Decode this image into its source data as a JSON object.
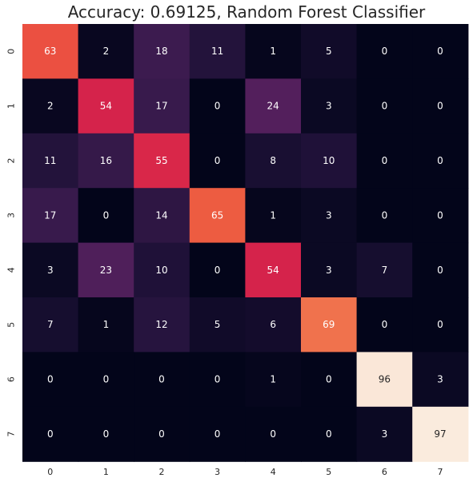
{
  "chart_data": {
    "type": "heatmap",
    "title": "Accuracy: 0.69125, Random Forest Classifier",
    "x_ticks": [
      "0",
      "1",
      "2",
      "3",
      "4",
      "5",
      "6",
      "7"
    ],
    "y_ticks": [
      "0",
      "1",
      "2",
      "3",
      "4",
      "5",
      "6",
      "7"
    ],
    "values": [
      [
        63,
        2,
        18,
        11,
        1,
        5,
        0,
        0
      ],
      [
        2,
        54,
        17,
        0,
        24,
        3,
        0,
        0
      ],
      [
        11,
        16,
        55,
        0,
        8,
        10,
        0,
        0
      ],
      [
        17,
        0,
        14,
        65,
        1,
        3,
        0,
        0
      ],
      [
        3,
        23,
        10,
        0,
        54,
        3,
        7,
        0
      ],
      [
        7,
        1,
        12,
        5,
        6,
        69,
        0,
        0
      ],
      [
        0,
        0,
        0,
        0,
        1,
        0,
        96,
        3
      ],
      [
        0,
        0,
        0,
        0,
        0,
        0,
        3,
        97
      ]
    ],
    "vmin": 0,
    "vmax": 97,
    "colormap": "rocket",
    "colorbar": false,
    "grid": false
  }
}
